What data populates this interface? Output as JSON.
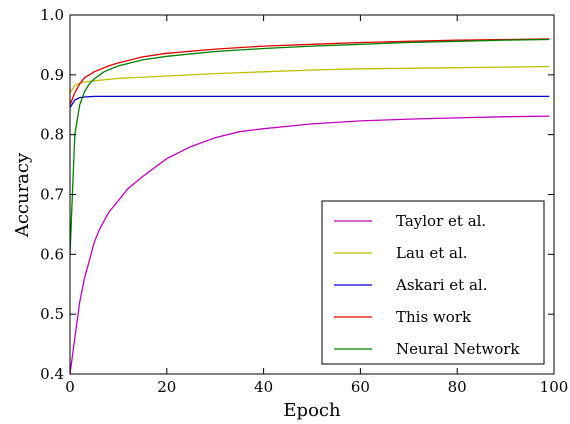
{
  "chart_data": {
    "type": "line",
    "xlabel": "Epoch",
    "ylabel": "Accuracy",
    "xlim": [
      0,
      100
    ],
    "ylim": [
      0.4,
      1.0
    ],
    "xticks": [
      0,
      20,
      40,
      60,
      80,
      100
    ],
    "yticks": [
      0.4,
      0.5,
      0.6,
      0.7,
      0.8,
      0.9,
      1.0
    ],
    "xtick_labels": [
      "0",
      "20",
      "40",
      "60",
      "80",
      "100"
    ],
    "ytick_labels": [
      "0.4",
      "0.5",
      "0.6",
      "0.7",
      "0.8",
      "0.9",
      "1.0"
    ],
    "grid": false,
    "legend_position": "lower-right",
    "series": [
      {
        "name": "Taylor et al.",
        "color": "#bf00bf",
        "points": [
          [
            0,
            0.4
          ],
          [
            1,
            0.46
          ],
          [
            2,
            0.52
          ],
          [
            3,
            0.56
          ],
          [
            4,
            0.59
          ],
          [
            5,
            0.62
          ],
          [
            6,
            0.64
          ],
          [
            8,
            0.67
          ],
          [
            10,
            0.69
          ],
          [
            12,
            0.71
          ],
          [
            15,
            0.73
          ],
          [
            20,
            0.76
          ],
          [
            25,
            0.78
          ],
          [
            30,
            0.795
          ],
          [
            35,
            0.805
          ],
          [
            40,
            0.81
          ],
          [
            50,
            0.818
          ],
          [
            60,
            0.823
          ],
          [
            70,
            0.826
          ],
          [
            80,
            0.828
          ],
          [
            90,
            0.83
          ],
          [
            99,
            0.831
          ]
        ]
      },
      {
        "name": "Lau et al.",
        "color": "#bfbf00",
        "points": [
          [
            0,
            0.87
          ],
          [
            1,
            0.882
          ],
          [
            2,
            0.886
          ],
          [
            3,
            0.888
          ],
          [
            5,
            0.89
          ],
          [
            10,
            0.894
          ],
          [
            20,
            0.898
          ],
          [
            30,
            0.902
          ],
          [
            40,
            0.905
          ],
          [
            50,
            0.908
          ],
          [
            60,
            0.91
          ],
          [
            70,
            0.911
          ],
          [
            80,
            0.912
          ],
          [
            90,
            0.913
          ],
          [
            99,
            0.914
          ]
        ]
      },
      {
        "name": "Askari et al.",
        "color": "#0000cc",
        "points": [
          [
            0,
            0.845
          ],
          [
            1,
            0.858
          ],
          [
            2,
            0.862
          ],
          [
            3,
            0.863
          ],
          [
            5,
            0.864
          ],
          [
            10,
            0.864
          ],
          [
            20,
            0.864
          ],
          [
            40,
            0.864
          ],
          [
            60,
            0.864
          ],
          [
            80,
            0.864
          ],
          [
            99,
            0.864
          ]
        ]
      },
      {
        "name": "This work",
        "color": "#e00000",
        "points": [
          [
            0,
            0.85
          ],
          [
            1,
            0.87
          ],
          [
            2,
            0.885
          ],
          [
            3,
            0.895
          ],
          [
            5,
            0.905
          ],
          [
            8,
            0.915
          ],
          [
            10,
            0.92
          ],
          [
            15,
            0.93
          ],
          [
            20,
            0.936
          ],
          [
            30,
            0.943
          ],
          [
            40,
            0.948
          ],
          [
            50,
            0.951
          ],
          [
            60,
            0.954
          ],
          [
            70,
            0.956
          ],
          [
            80,
            0.958
          ],
          [
            90,
            0.959
          ],
          [
            99,
            0.96
          ]
        ]
      },
      {
        "name": "Neural Network",
        "color": "#008000",
        "points": [
          [
            0,
            0.6
          ],
          [
            1,
            0.8
          ],
          [
            2,
            0.85
          ],
          [
            3,
            0.872
          ],
          [
            4,
            0.885
          ],
          [
            5,
            0.893
          ],
          [
            7,
            0.905
          ],
          [
            10,
            0.915
          ],
          [
            15,
            0.925
          ],
          [
            20,
            0.931
          ],
          [
            30,
            0.939
          ],
          [
            40,
            0.944
          ],
          [
            50,
            0.948
          ],
          [
            60,
            0.951
          ],
          [
            70,
            0.954
          ],
          [
            80,
            0.956
          ],
          [
            90,
            0.958
          ],
          [
            99,
            0.959
          ]
        ]
      }
    ]
  }
}
